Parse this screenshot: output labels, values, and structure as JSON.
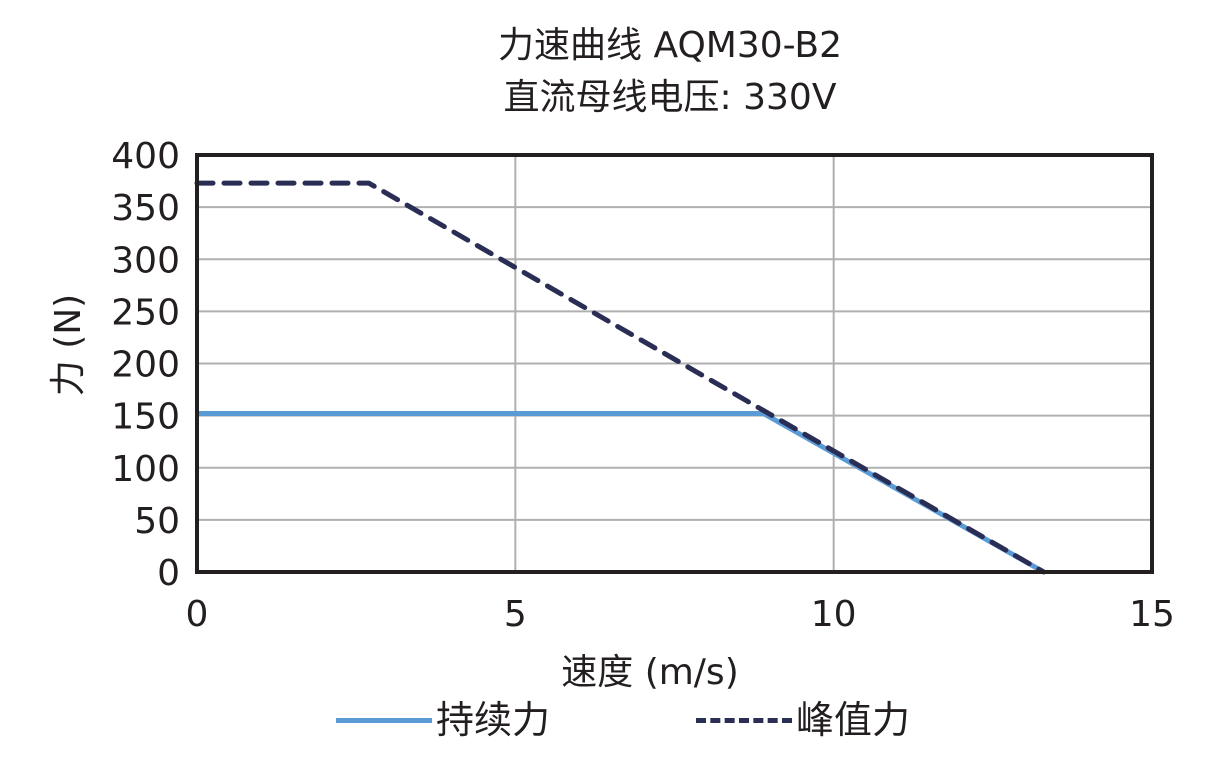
{
  "chart_data": {
    "type": "line",
    "title": "力速曲线 AQM30-B2",
    "subtitle": "直流母线电压: 330V",
    "xlabel": "速度 (m/s)",
    "ylabel": "力 (N)",
    "xlim": [
      0,
      15
    ],
    "ylim": [
      0,
      400
    ],
    "xticks": [
      0,
      5,
      10,
      15
    ],
    "yticks": [
      0,
      50,
      100,
      150,
      200,
      250,
      300,
      350,
      400
    ],
    "grid": true,
    "legend_position": "bottom",
    "series": [
      {
        "name": "持续力",
        "style": "solid",
        "color": "#5b9bd5",
        "x": [
          0,
          8.9,
          13.3
        ],
        "y": [
          152,
          152,
          0
        ]
      },
      {
        "name": "峰值力",
        "style": "dashed",
        "color": "#2a2d54",
        "x": [
          0,
          2.7,
          13.3
        ],
        "y": [
          373,
          373,
          0
        ]
      }
    ]
  },
  "colors": {
    "continuous": "#5b9bd5",
    "peak": "#2a2d54",
    "grid": "#b0b0b0",
    "frame": "#231f20"
  }
}
